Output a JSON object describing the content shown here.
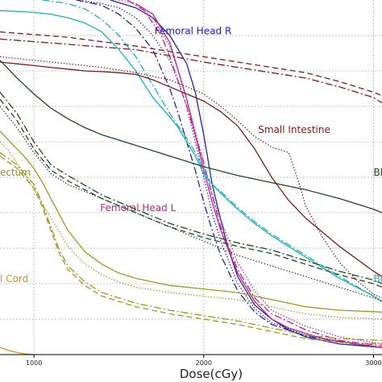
{
  "chart_data": {
    "type": "line",
    "xlabel": "Dose(cGy)",
    "ylabel": "",
    "xlim": [
      800,
      3050
    ],
    "ylim": [
      0,
      100
    ],
    "xticks": [
      1000,
      2000,
      3000
    ],
    "xtick_labels": [
      "1000",
      "2000",
      "3000"
    ],
    "yticks": [
      10,
      20,
      30,
      40,
      50,
      60,
      70,
      80,
      90
    ],
    "grid": true,
    "annotations": [
      {
        "text": "Femoral Head R",
        "x": 1710,
        "y": 90.3,
        "color": "#2020b8"
      },
      {
        "text": "Small Intestine",
        "x": 2320,
        "y": 62.5,
        "color": "#7a1c1c"
      },
      {
        "text": "Bl",
        "x": 3000,
        "y": 50.5,
        "color": "#1c4a1c"
      },
      {
        "text": "ectum",
        "x": 800,
        "y": 50.5,
        "color": "#8f8f1f"
      },
      {
        "text": "Femoral Head L",
        "x": 1390,
        "y": 40.5,
        "color": "#c0208a"
      },
      {
        "text": "l Cord",
        "x": 800,
        "y": 20.5,
        "color": "#d09020"
      },
      {
        "text": "Bo",
        "x": 3000,
        "y": 20.5,
        "color": "#18b0b8"
      }
    ],
    "series": [
      {
        "color": "#2323a8",
        "dash": "solid",
        "x": [
          1450,
          1600,
          1700,
          1800,
          1900,
          1950,
          2000,
          2050,
          2100,
          2150,
          2200,
          2300,
          2400,
          2500,
          2600,
          2800,
          3050
        ],
        "y": [
          100,
          97.8,
          95,
          90,
          82,
          74,
          62,
          48,
          38,
          29,
          22,
          14,
          10,
          7,
          5,
          3,
          2
        ]
      },
      {
        "color": "#2323a8",
        "dash": "dashdot",
        "x": [
          1250,
          1400,
          1500,
          1600,
          1700,
          1800,
          1850,
          1900,
          1950,
          2000,
          2050,
          2100,
          2200,
          2300,
          2400,
          2600,
          2800,
          3050
        ],
        "y": [
          100,
          98.5,
          96,
          92,
          86,
          75,
          68,
          60,
          52,
          43,
          35,
          28,
          18,
          12,
          8.5,
          5.3,
          3.6,
          2
        ]
      },
      {
        "color": "#2323a8",
        "dash": "dotted",
        "x": [
          1250,
          1400,
          1500,
          1600,
          1700,
          1800,
          1850,
          1900,
          1950,
          2000,
          2050,
          2100,
          2200,
          2300,
          2400,
          2600,
          2800,
          3050
        ],
        "y": [
          100,
          99,
          97.8,
          95,
          90,
          83,
          77,
          70,
          60,
          50,
          40,
          32,
          20,
          13,
          9,
          5.5,
          3.8,
          2
        ]
      },
      {
        "color": "#c0208a",
        "dash": "solid",
        "x": [
          1600,
          1700,
          1800,
          1850,
          1900,
          1950,
          2000,
          2050,
          2100,
          2200,
          2300,
          2400,
          2500,
          2700,
          2900,
          3050
        ],
        "y": [
          99,
          96,
          88,
          80,
          72,
          62,
          52,
          43,
          35,
          23,
          15,
          10,
          7.5,
          4.5,
          3,
          2
        ]
      },
      {
        "color": "#c0208a",
        "dash": "dashdot",
        "x": [
          1550,
          1650,
          1750,
          1800,
          1850,
          1900,
          1950,
          2000,
          2050,
          2100,
          2150,
          2200,
          2300,
          2400,
          2600,
          2800,
          3050
        ],
        "y": [
          100,
          97,
          90,
          84,
          77,
          70,
          62,
          54,
          45,
          36,
          30,
          24,
          16,
          11.5,
          7,
          4,
          2.5
        ]
      },
      {
        "color": "#c0208a",
        "dash": "dotted",
        "x": [
          1500,
          1600,
          1700,
          1800,
          1850,
          1900,
          1950,
          2000,
          2050,
          2100,
          2200,
          2300,
          2400,
          2600,
          2800,
          3050
        ],
        "y": [
          100,
          99,
          95,
          87,
          80,
          72,
          63,
          54,
          45,
          38,
          26,
          18,
          12.5,
          8,
          5,
          3
        ]
      },
      {
        "color": "#18b0b8",
        "dash": "solid",
        "x": [
          800,
          900,
          1000,
          1100,
          1200,
          1300,
          1400,
          1500,
          1600,
          1700,
          1800,
          1850,
          1900,
          1950,
          2000,
          2050,
          2100,
          2200,
          2300,
          2400,
          2500,
          2600,
          2700,
          2800,
          2900,
          3000,
          3050
        ],
        "y": [
          97,
          96.8,
          96.5,
          96,
          95,
          93.5,
          91,
          86,
          80,
          72.5,
          67,
          64,
          60,
          56,
          51,
          48,
          45.5,
          41,
          37,
          33.5,
          30.5,
          27.5,
          24.5,
          21.5,
          19,
          16.5,
          15
        ]
      },
      {
        "color": "#18b0b8",
        "dash": "dashdot",
        "x": [
          1050,
          1200,
          1300,
          1400,
          1500,
          1600,
          1700,
          1800,
          1900,
          1950,
          2000,
          2050,
          2100,
          2200,
          2300,
          2400,
          2600,
          2800,
          3000,
          3050
        ],
        "y": [
          100,
          99,
          97.5,
          94.5,
          90,
          84,
          76,
          68,
          61,
          57,
          52,
          48,
          46,
          41.5,
          37.5,
          34,
          28,
          22,
          16.5,
          15
        ]
      },
      {
        "color": "#7a1c1c",
        "dash": "solid",
        "x": [
          800,
          900,
          1000,
          1100,
          1200,
          1300,
          1400,
          1500,
          1600,
          1700,
          1800,
          1900,
          2000,
          2100,
          2200,
          2300,
          2400,
          2500,
          2600,
          2700,
          2800,
          2900,
          3000,
          3050
        ],
        "y": [
          82.5,
          82,
          81.5,
          81,
          80.5,
          80,
          79.8,
          79.5,
          79,
          77.5,
          75.5,
          73.5,
          71.5,
          68.5,
          64.5,
          58,
          50,
          43.5,
          38.5,
          34.5,
          30.5,
          27,
          23.5,
          22
        ]
      },
      {
        "color": "#7a1c1c",
        "dash": "dashed",
        "x": [
          800,
          1200,
          1600,
          2000,
          2200,
          2400,
          2600,
          2800,
          2900,
          3000,
          3050
        ],
        "y": [
          91,
          89.5,
          87,
          84,
          82.5,
          81,
          79.5,
          77,
          75.5,
          74,
          73
        ]
      },
      {
        "color": "#7a1c1c",
        "dash": "dashdot",
        "x": [
          800,
          1200,
          1600,
          2000,
          2200,
          2400,
          2600,
          2800,
          2900,
          3000,
          3050
        ],
        "y": [
          89,
          87.5,
          86,
          82.5,
          81,
          79.5,
          78,
          75.5,
          74,
          72.5,
          71
        ]
      },
      {
        "color": "#7a1c1c",
        "dash": "dotted",
        "x": [
          800,
          900,
          1000,
          1100,
          1200,
          1400,
          1600,
          1800,
          2000,
          2100,
          2200,
          2300,
          2400,
          2500,
          2550,
          2600,
          2700,
          2800,
          2900,
          3000,
          3050
        ],
        "y": [
          84,
          83.5,
          83,
          82.5,
          82,
          81,
          79.5,
          77.5,
          73.5,
          70,
          66,
          61.5,
          58.5,
          57,
          50,
          42,
          33,
          26,
          21,
          17,
          16
        ]
      },
      {
        "color": "#1c4a1c",
        "dash": "solid",
        "x": [
          800,
          900,
          1000,
          1100,
          1200,
          1300,
          1400,
          1600,
          1800,
          2000,
          2200,
          2400,
          2600,
          2800,
          3000,
          3050
        ],
        "y": [
          83,
          78,
          73.5,
          69.5,
          66.5,
          64,
          62,
          59,
          56,
          53,
          50.5,
          48.5,
          46.5,
          44,
          41,
          40
        ]
      },
      {
        "color": "#1c4a1c",
        "dash": "dashed",
        "x": [
          800,
          900,
          1000,
          1100,
          1200,
          1400,
          1600,
          1800,
          2000,
          2200,
          2400,
          2600,
          2800,
          3000,
          3050
        ],
        "y": [
          72,
          66,
          58,
          52,
          49,
          44,
          40,
          36,
          33,
          30.5,
          28.5,
          25.5,
          22.5,
          20,
          19
        ]
      },
      {
        "color": "#1c4a1c",
        "dash": "dashdot",
        "x": [
          800,
          900,
          1000,
          1100,
          1200,
          1400,
          1600,
          1800,
          2000,
          2200,
          2400,
          2600,
          2800,
          3000,
          3050
        ],
        "y": [
          74,
          68,
          60,
          53.5,
          50.5,
          45,
          41,
          37,
          34,
          31.5,
          29.5,
          26.5,
          23.5,
          21,
          20
        ]
      },
      {
        "color": "#1c4a1c",
        "dash": "dotted",
        "x": [
          800,
          900,
          1000,
          1100,
          1200,
          1400,
          1600,
          1800,
          2000,
          2200,
          2400,
          2600,
          2800,
          3000,
          3050
        ],
        "y": [
          70,
          64,
          57,
          51,
          48,
          44,
          40,
          36,
          32,
          28,
          25,
          22,
          19,
          16,
          15
        ]
      },
      {
        "color": "#9a9a20",
        "dash": "solid",
        "x": [
          800,
          850,
          900,
          950,
          1000,
          1050,
          1100,
          1150,
          1200,
          1300,
          1400,
          1500,
          1600,
          1800,
          2000,
          2200,
          2400,
          2600,
          2800,
          3050
        ],
        "y": [
          63,
          60.5,
          58,
          55.5,
          52.5,
          48.5,
          44,
          39.5,
          35,
          29,
          25.5,
          23,
          21.5,
          19.5,
          18.5,
          17.5,
          15.5,
          13.5,
          12.5,
          12
        ]
      },
      {
        "color": "#9a9a20",
        "dash": "dashdot",
        "x": [
          800,
          900,
          1000,
          1050,
          1100,
          1150,
          1200,
          1300,
          1400,
          1500,
          1600,
          1800,
          2000,
          2200,
          2400,
          2600,
          2800,
          3050
        ],
        "y": [
          57,
          53.5,
          48,
          42.5,
          36,
          29.5,
          25,
          20.5,
          17.5,
          16,
          14.5,
          12.5,
          11,
          9.5,
          7.5,
          5.5,
          4.5,
          4
        ]
      },
      {
        "color": "#9a9a20",
        "dash": "dashed",
        "x": [
          800,
          900,
          1000,
          1050,
          1100,
          1150,
          1200,
          1300,
          1400,
          1500,
          1600,
          1800,
          2000,
          2200,
          2400,
          2600,
          2800,
          3050
        ],
        "y": [
          56,
          52.5,
          47,
          41.5,
          35,
          28.5,
          24,
          19.5,
          16.5,
          15,
          13.5,
          11.5,
          10,
          8.5,
          6.5,
          4.5,
          3.5,
          3
        ]
      },
      {
        "color": "#9a9a20",
        "dash": "dotted",
        "x": [
          800,
          850,
          900,
          950,
          1000,
          1050,
          1100,
          1150,
          1200,
          1300,
          1400,
          1500,
          1600,
          1800,
          2000,
          2200,
          2400,
          2600,
          2800,
          3050
        ],
        "y": [
          60,
          57.5,
          54,
          50.5,
          46.5,
          42.5,
          38.5,
          34.5,
          30.5,
          25.5,
          22.5,
          20.5,
          19,
          17.5,
          16.5,
          15.5,
          13.5,
          11.5,
          10.5,
          10
        ]
      },
      {
        "color": "#d09020",
        "dash": "solid",
        "x": [
          800,
          850,
          900,
          950,
          1000
        ],
        "y": [
          2,
          1.2,
          0.6,
          0.2,
          0
        ]
      }
    ]
  }
}
